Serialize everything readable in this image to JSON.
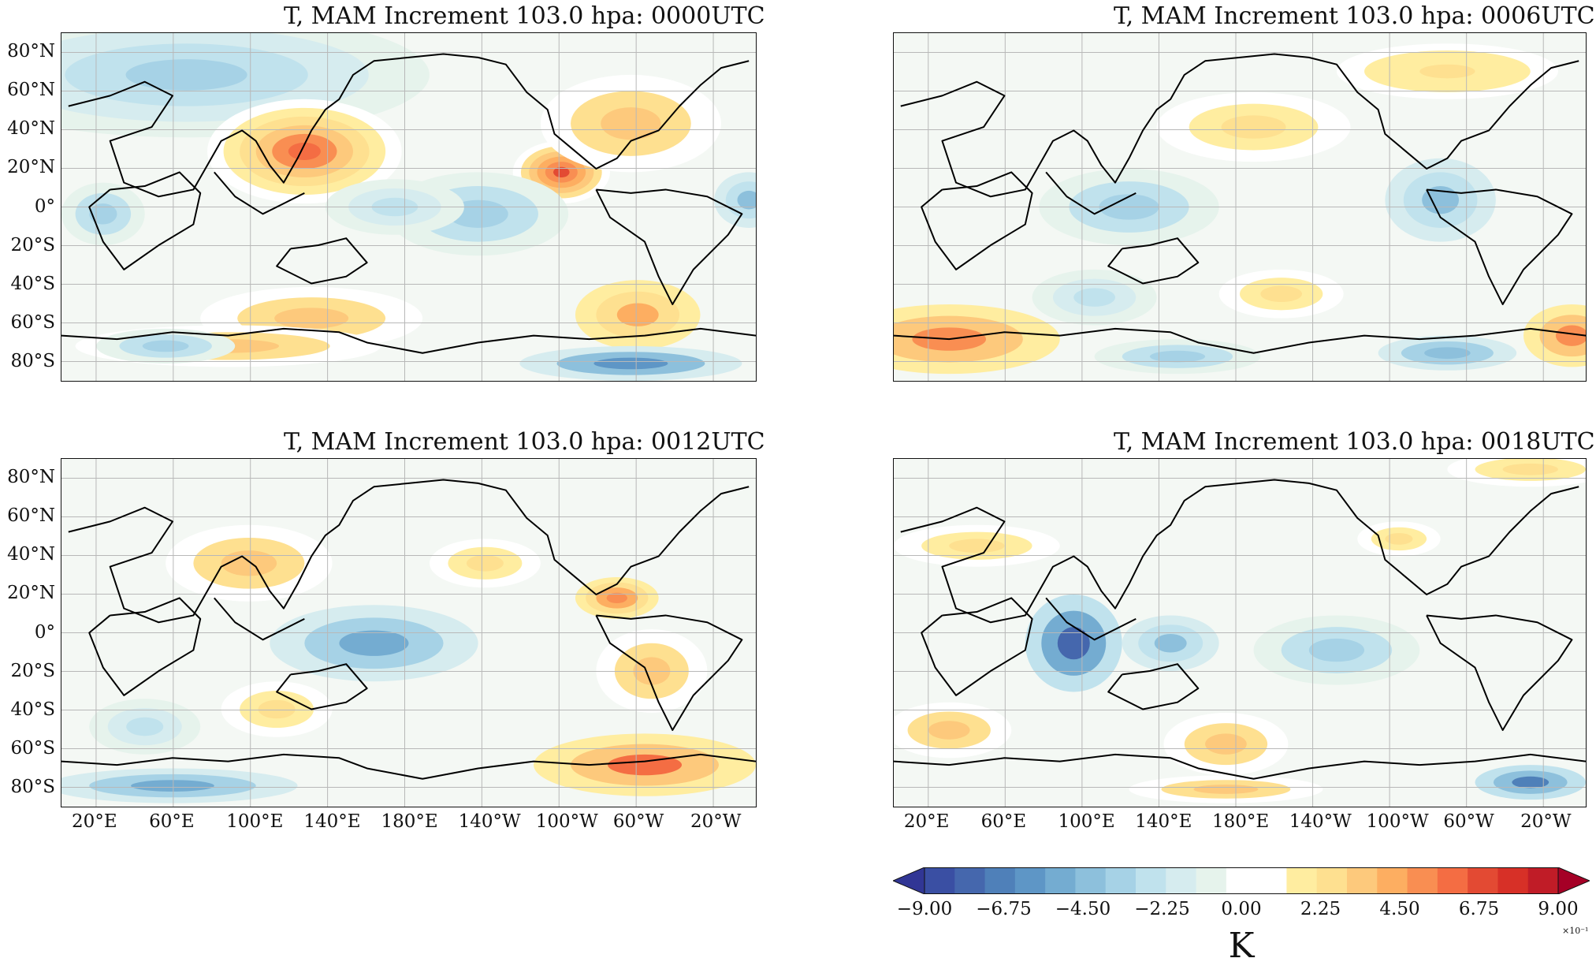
{
  "panels": [
    {
      "id": "p0000",
      "title": "T, MAM Increment 103.0 hpa: 0000UTC"
    },
    {
      "id": "p0006",
      "title": "T, MAM Increment 103.0 hpa: 0006UTC"
    },
    {
      "id": "p0012",
      "title": "T, MAM Increment 103.0 hpa: 0012UTC"
    },
    {
      "id": "p0018",
      "title": "T, MAM Increment 103.0 hpa: 0018UTC"
    }
  ],
  "lat_labels": [
    "80°N",
    "60°N",
    "40°N",
    "20°N",
    "0°",
    "20°S",
    "40°S",
    "60°S",
    "80°S"
  ],
  "lon_labels": [
    "20°E",
    "60°E",
    "100°E",
    "140°E",
    "180°E",
    "140°W",
    "100°W",
    "60°W",
    "20°W"
  ],
  "colorbar": {
    "ticks": [
      "−9.00",
      "−6.75",
      "−4.50",
      "−2.25",
      "0.00",
      "2.25",
      "4.50",
      "6.75",
      "9.00"
    ],
    "unit": "K",
    "multiplier": "×10⁻¹",
    "colors": [
      "#313695",
      "#3a4fa3",
      "#4567ad",
      "#4f80b9",
      "#5e96c6",
      "#74acd1",
      "#8dc0dc",
      "#a6d2e6",
      "#c0e2ed",
      "#d6ecef",
      "#e6f3ec",
      "#ffffff",
      "#ffffff",
      "#ffeda0",
      "#fee090",
      "#fdc97c",
      "#fdae61",
      "#f98e52",
      "#f46d43",
      "#e34a33",
      "#d73027",
      "#c01c27",
      "#a50026"
    ]
  },
  "colors": {
    "blue_end": "#313695",
    "red_end": "#a50026"
  }
}
